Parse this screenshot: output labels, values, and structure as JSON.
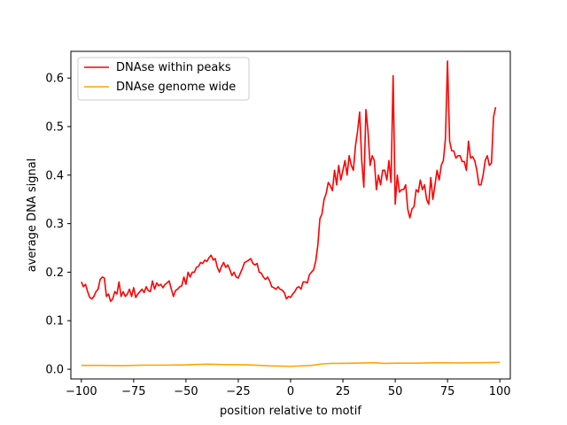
{
  "chart_data": {
    "type": "line",
    "xlabel": "position relative to motif",
    "ylabel": "average DNA signal",
    "xlim": [
      -105,
      105
    ],
    "ylim": [
      -0.02,
      0.655
    ],
    "xticks": [
      -100,
      -75,
      -50,
      -25,
      0,
      25,
      50,
      75,
      100
    ],
    "xtick_labels": [
      "−100",
      "−75",
      "−50",
      "−25",
      "0",
      "25",
      "50",
      "75",
      "100"
    ],
    "yticks": [
      0.0,
      0.1,
      0.2,
      0.3,
      0.4,
      0.5,
      0.6
    ],
    "ytick_labels": [
      "0.0",
      "0.1",
      "0.2",
      "0.3",
      "0.4",
      "0.5",
      "0.6"
    ],
    "grid": false,
    "legend_position": "top-left",
    "series": [
      {
        "name": "DNAse within peaks",
        "color": "#ff0000",
        "points": [
          [
            -100,
            0.18
          ],
          [
            -99,
            0.17
          ],
          [
            -98,
            0.175
          ],
          [
            -97,
            0.16
          ],
          [
            -96,
            0.148
          ],
          [
            -95,
            0.145
          ],
          [
            -94,
            0.15
          ],
          [
            -93,
            0.16
          ],
          [
            -92,
            0.165
          ],
          [
            -91,
            0.185
          ],
          [
            -90,
            0.19
          ],
          [
            -89,
            0.188
          ],
          [
            -88,
            0.15
          ],
          [
            -87,
            0.155
          ],
          [
            -86,
            0.14
          ],
          [
            -85,
            0.145
          ],
          [
            -84,
            0.16
          ],
          [
            -83,
            0.155
          ],
          [
            -82,
            0.18
          ],
          [
            -81,
            0.15
          ],
          [
            -80,
            0.16
          ],
          [
            -79,
            0.15
          ],
          [
            -78,
            0.155
          ],
          [
            -77,
            0.165
          ],
          [
            -76,
            0.15
          ],
          [
            -75,
            0.168
          ],
          [
            -74,
            0.148
          ],
          [
            -73,
            0.155
          ],
          [
            -72,
            0.16
          ],
          [
            -71,
            0.165
          ],
          [
            -70,
            0.158
          ],
          [
            -69,
            0.17
          ],
          [
            -68,
            0.162
          ],
          [
            -67,
            0.16
          ],
          [
            -66,
            0.182
          ],
          [
            -65,
            0.165
          ],
          [
            -64,
            0.178
          ],
          [
            -63,
            0.172
          ],
          [
            -62,
            0.175
          ],
          [
            -61,
            0.168
          ],
          [
            -60,
            0.175
          ],
          [
            -59,
            0.178
          ],
          [
            -58,
            0.182
          ],
          [
            -57,
            0.165
          ],
          [
            -56,
            0.15
          ],
          [
            -55,
            0.162
          ],
          [
            -54,
            0.165
          ],
          [
            -53,
            0.17
          ],
          [
            -52,
            0.172
          ],
          [
            -51,
            0.19
          ],
          [
            -50,
            0.175
          ],
          [
            -49,
            0.2
          ],
          [
            -48,
            0.19
          ],
          [
            -47,
            0.2
          ],
          [
            -46,
            0.2
          ],
          [
            -45,
            0.21
          ],
          [
            -44,
            0.212
          ],
          [
            -43,
            0.22
          ],
          [
            -42,
            0.218
          ],
          [
            -41,
            0.225
          ],
          [
            -40,
            0.222
          ],
          [
            -39,
            0.23
          ],
          [
            -38,
            0.235
          ],
          [
            -37,
            0.225
          ],
          [
            -36,
            0.228
          ],
          [
            -35,
            0.21
          ],
          [
            -34,
            0.2
          ],
          [
            -33,
            0.212
          ],
          [
            -32,
            0.22
          ],
          [
            -31,
            0.21
          ],
          [
            -30,
            0.215
          ],
          [
            -29,
            0.205
          ],
          [
            -28,
            0.193
          ],
          [
            -27,
            0.2
          ],
          [
            -26,
            0.19
          ],
          [
            -25,
            0.188
          ],
          [
            -24,
            0.198
          ],
          [
            -23,
            0.208
          ],
          [
            -22,
            0.22
          ],
          [
            -21,
            0.222
          ],
          [
            -20,
            0.225
          ],
          [
            -19,
            0.228
          ],
          [
            -18,
            0.218
          ],
          [
            -17,
            0.215
          ],
          [
            -16,
            0.218
          ],
          [
            -15,
            0.2
          ],
          [
            -14,
            0.198
          ],
          [
            -13,
            0.19
          ],
          [
            -12,
            0.185
          ],
          [
            -11,
            0.19
          ],
          [
            -10,
            0.182
          ],
          [
            -9,
            0.17
          ],
          [
            -8,
            0.168
          ],
          [
            -7,
            0.165
          ],
          [
            -6,
            0.17
          ],
          [
            -5,
            0.165
          ],
          [
            -4,
            0.163
          ],
          [
            -3,
            0.158
          ],
          [
            -2,
            0.145
          ],
          [
            -1,
            0.15
          ],
          [
            0,
            0.148
          ],
          [
            1,
            0.155
          ],
          [
            2,
            0.16
          ],
          [
            3,
            0.168
          ],
          [
            4,
            0.17
          ],
          [
            5,
            0.165
          ],
          [
            6,
            0.18
          ],
          [
            7,
            0.18
          ],
          [
            8,
            0.178
          ],
          [
            9,
            0.195
          ],
          [
            10,
            0.2
          ],
          [
            11,
            0.205
          ],
          [
            12,
            0.222
          ],
          [
            13,
            0.255
          ],
          [
            14,
            0.31
          ],
          [
            15,
            0.32
          ],
          [
            16,
            0.35
          ],
          [
            17,
            0.362
          ],
          [
            18,
            0.385
          ],
          [
            19,
            0.378
          ],
          [
            20,
            0.368
          ],
          [
            21,
            0.41
          ],
          [
            22,
            0.38
          ],
          [
            23,
            0.42
          ],
          [
            24,
            0.39
          ],
          [
            25,
            0.41
          ],
          [
            26,
            0.43
          ],
          [
            27,
            0.4
          ],
          [
            28,
            0.44
          ],
          [
            29,
            0.42
          ],
          [
            30,
            0.41
          ],
          [
            31,
            0.46
          ],
          [
            32,
            0.49
          ],
          [
            33,
            0.53
          ],
          [
            34,
            0.43
          ],
          [
            35,
            0.375
          ],
          [
            36,
            0.535
          ],
          [
            37,
            0.49
          ],
          [
            38,
            0.42
          ],
          [
            39,
            0.44
          ],
          [
            40,
            0.43
          ],
          [
            41,
            0.37
          ],
          [
            42,
            0.4
          ],
          [
            43,
            0.38
          ],
          [
            44,
            0.41
          ],
          [
            45,
            0.41
          ],
          [
            46,
            0.39
          ],
          [
            47,
            0.43
          ],
          [
            48,
            0.385
          ],
          [
            49,
            0.605
          ],
          [
            50,
            0.34
          ],
          [
            51,
            0.4
          ],
          [
            52,
            0.365
          ],
          [
            53,
            0.37
          ],
          [
            54,
            0.37
          ],
          [
            55,
            0.38
          ],
          [
            56,
            0.33
          ],
          [
            57,
            0.312
          ],
          [
            58,
            0.33
          ],
          [
            59,
            0.335
          ],
          [
            60,
            0.37
          ],
          [
            61,
            0.365
          ],
          [
            62,
            0.39
          ],
          [
            63,
            0.37
          ],
          [
            64,
            0.38
          ],
          [
            65,
            0.35
          ],
          [
            66,
            0.34
          ],
          [
            67,
            0.395
          ],
          [
            68,
            0.35
          ],
          [
            69,
            0.38
          ],
          [
            70,
            0.41
          ],
          [
            71,
            0.39
          ],
          [
            72,
            0.42
          ],
          [
            73,
            0.43
          ],
          [
            74,
            0.475
          ],
          [
            75,
            0.635
          ],
          [
            76,
            0.47
          ],
          [
            77,
            0.45
          ],
          [
            78,
            0.45
          ],
          [
            79,
            0.435
          ],
          [
            80,
            0.44
          ],
          [
            81,
            0.44
          ],
          [
            82,
            0.428
          ],
          [
            83,
            0.428
          ],
          [
            84,
            0.41
          ],
          [
            85,
            0.47
          ],
          [
            86,
            0.435
          ],
          [
            87,
            0.438
          ],
          [
            88,
            0.43
          ],
          [
            89,
            0.41
          ],
          [
            90,
            0.38
          ],
          [
            91,
            0.38
          ],
          [
            92,
            0.4
          ],
          [
            93,
            0.43
          ],
          [
            94,
            0.44
          ],
          [
            95,
            0.42
          ],
          [
            96,
            0.425
          ],
          [
            97,
            0.52
          ],
          [
            98,
            0.54
          ]
        ]
      },
      {
        "name": "DNAse genome wide",
        "color": "#ffa500",
        "points": [
          [
            -100,
            0.008
          ],
          [
            -90,
            0.008
          ],
          [
            -80,
            0.0075
          ],
          [
            -70,
            0.0085
          ],
          [
            -60,
            0.0085
          ],
          [
            -50,
            0.009
          ],
          [
            -40,
            0.0105
          ],
          [
            -30,
            0.0095
          ],
          [
            -20,
            0.009
          ],
          [
            -10,
            0.007
          ],
          [
            0,
            0.006
          ],
          [
            10,
            0.008
          ],
          [
            15,
            0.011
          ],
          [
            20,
            0.012
          ],
          [
            30,
            0.0125
          ],
          [
            40,
            0.0135
          ],
          [
            45,
            0.012
          ],
          [
            50,
            0.0125
          ],
          [
            60,
            0.0125
          ],
          [
            70,
            0.0135
          ],
          [
            80,
            0.013
          ],
          [
            90,
            0.0135
          ],
          [
            100,
            0.014
          ]
        ]
      }
    ]
  }
}
